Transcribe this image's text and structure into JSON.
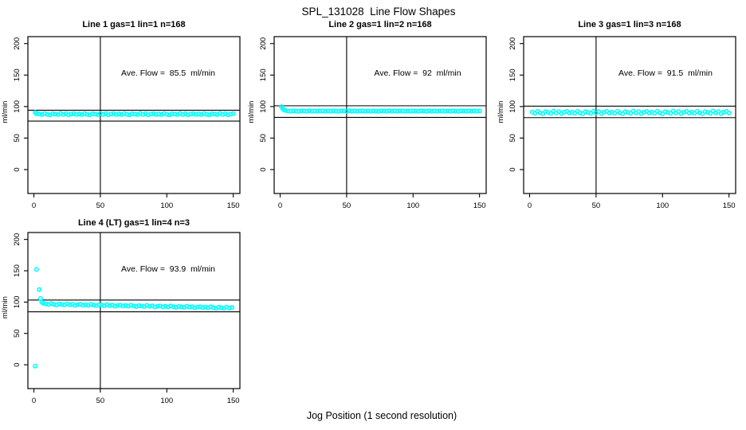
{
  "figure": {
    "main_title": "SPL_131028  Line Flow Shapes",
    "x_axis_label": "Jog Position (1 second resolution)",
    "y_axis_label": "ml/min",
    "accent_color": "#00FFFF",
    "axis_color": "#000000",
    "background_color": "#FFFFFF"
  },
  "chart_data": [
    {
      "type": "scatter",
      "title": "Line 1 gas=1 lin=1 n=168",
      "n": 168,
      "avg_flow": 85.5,
      "avg_label": "Ave. Flow =  85.5  ml/min",
      "ylabel": "ml/min",
      "xticks": [
        0,
        50,
        100,
        150
      ],
      "yticks": [
        0,
        50,
        100,
        150,
        200
      ],
      "xlim": [
        -4.5,
        155
      ],
      "ylim": [
        -38,
        211
      ],
      "vline_x": 50,
      "ref_upper": 94.1,
      "ref_lower": 77.0,
      "head_points": [
        [
          1,
          90.5
        ],
        [
          2,
          88.6
        ]
      ],
      "band": {
        "x_from": 4,
        "x_to": 150,
        "x_step": 2,
        "y": [
          88.3,
          87.3,
          88.9,
          87.7,
          86.8,
          88.5,
          88.0,
          87.2,
          89.0,
          87.5,
          88.6,
          86.9,
          88.1,
          88.7,
          87.4,
          88.3,
          87.3,
          88.9,
          87.7,
          86.8,
          88.5,
          88.0,
          87.2,
          89.0,
          87.5,
          88.6,
          86.9,
          88.1,
          88.7,
          87.4,
          88.3,
          87.3,
          88.9,
          87.7,
          86.8,
          88.5,
          88.0,
          87.2,
          89.0,
          87.5,
          88.6,
          86.9,
          88.1,
          88.7,
          87.4,
          88.3,
          87.3,
          88.9,
          87.7,
          86.8,
          88.5,
          88.0,
          87.2,
          89.0,
          87.5,
          88.6,
          86.9,
          88.1,
          88.7,
          87.4,
          88.3,
          87.3,
          88.9,
          87.7,
          86.8,
          88.5,
          88.0,
          87.2,
          89.0,
          87.5,
          88.6,
          86.9,
          88.1,
          88.7
        ]
      }
    },
    {
      "type": "scatter",
      "title": "Line 2 gas=1 lin=2 n=168",
      "n": 168,
      "avg_flow": 92,
      "avg_label": "Ave. Flow =  92  ml/min",
      "ylabel": "ml/min",
      "xticks": [
        0,
        50,
        100,
        150
      ],
      "yticks": [
        0,
        50,
        100,
        150,
        200
      ],
      "xlim": [
        -4.5,
        155
      ],
      "ylim": [
        -38,
        211
      ],
      "vline_x": 50,
      "ref_upper": 101.2,
      "ref_lower": 82.8,
      "head_points": [
        [
          1,
          99.8
        ],
        [
          2,
          96.5
        ],
        [
          3,
          94.7
        ],
        [
          4,
          93.7
        ]
      ],
      "band": {
        "x_from": 6,
        "x_to": 150,
        "x_step": 2,
        "y": [
          93.0,
          92.6,
          93.2,
          92.7,
          92.4,
          93.1,
          92.9,
          92.5,
          93.3,
          92.7,
          93.1,
          92.4,
          92.9,
          93.2,
          92.6,
          93.0,
          92.6,
          93.2,
          92.7,
          92.4,
          93.1,
          92.9,
          92.5,
          93.3,
          92.7,
          93.1,
          92.4,
          92.9,
          93.2,
          92.6,
          93.0,
          92.6,
          93.2,
          92.7,
          92.4,
          93.1,
          92.9,
          92.5,
          93.3,
          92.7,
          93.1,
          92.4,
          92.9,
          93.2,
          92.6,
          93.0,
          92.6,
          93.2,
          92.7,
          92.4,
          93.1,
          92.9,
          92.5,
          93.3,
          92.7,
          93.1,
          92.4,
          92.9,
          93.2,
          92.6,
          93.0,
          92.6,
          93.2,
          92.7,
          92.4,
          93.1,
          92.9,
          92.5,
          93.3,
          92.7,
          93.1,
          92.4,
          92.9
        ]
      }
    },
    {
      "type": "scatter",
      "title": "Line 3 gas=1 lin=3 n=168",
      "n": 168,
      "avg_flow": 91.5,
      "avg_label": "Ave. Flow =  91.5  ml/min",
      "ylabel": "ml/min",
      "xticks": [
        0,
        50,
        100,
        150
      ],
      "yticks": [
        0,
        50,
        100,
        150,
        200
      ],
      "xlim": [
        -4.5,
        155
      ],
      "ylim": [
        -38,
        211
      ],
      "vline_x": 50,
      "ref_upper": 100.7,
      "ref_lower": 82.4,
      "head_points": [],
      "band": {
        "x_from": 2,
        "x_to": 150,
        "x_step": 2,
        "y": [
          91.2,
          89.4,
          92.6,
          90.2,
          88.6,
          91.8,
          90.8,
          89.2,
          92.8,
          90.0,
          92.0,
          88.9,
          91.0,
          92.3,
          89.7,
          91.2,
          89.4,
          92.6,
          90.2,
          88.6,
          91.8,
          90.8,
          89.2,
          92.8,
          90.0,
          92.0,
          88.9,
          91.0,
          92.3,
          89.7,
          91.2,
          89.4,
          92.6,
          90.2,
          88.6,
          91.8,
          90.8,
          89.2,
          92.8,
          90.0,
          92.0,
          88.9,
          91.0,
          92.3,
          89.7,
          91.2,
          89.4,
          92.6,
          90.2,
          88.6,
          91.8,
          90.8,
          89.2,
          92.8,
          90.0,
          92.0,
          88.9,
          91.0,
          92.3,
          89.7,
          91.2,
          89.4,
          92.6,
          90.2,
          88.6,
          91.8,
          90.8,
          89.2,
          92.8,
          90.0,
          92.0,
          88.9,
          91.0,
          92.3,
          89.7
        ]
      }
    },
    {
      "type": "scatter",
      "title": "Line 4 (LT) gas=1 lin=4 n=3",
      "n": 3,
      "avg_flow": 93.9,
      "avg_label": "Ave. Flow =  93.9  ml/min",
      "ylabel": "ml/min",
      "xticks": [
        0,
        50,
        100,
        150
      ],
      "yticks": [
        0,
        50,
        100,
        150,
        200
      ],
      "xlim": [
        -4.5,
        155
      ],
      "ylim": [
        -38,
        211
      ],
      "vline_x": 50,
      "ref_upper": 103.3,
      "ref_lower": 84.5,
      "head_points": [
        [
          1,
          -2
        ],
        [
          2,
          152
        ],
        [
          4,
          120
        ],
        [
          5,
          106
        ],
        [
          6,
          100
        ],
        [
          7,
          98
        ]
      ],
      "band": {
        "x_from": 9,
        "x_to": 149,
        "x_step": 2,
        "y": [
          97.2,
          96.1,
          97.6,
          96.3,
          95.3,
          97.0,
          96.4,
          95.5,
          97.2,
          95.6,
          96.6,
          94.8,
          96.0,
          96.5,
          95.1,
          95.9,
          94.8,
          96.3,
          95.1,
          94.2,
          95.7,
          95.1,
          94.2,
          96.0,
          94.3,
          95.3,
          93.5,
          94.6,
          95.2,
          93.8,
          94.6,
          93.5,
          95.1,
          93.8,
          92.8,
          94.3,
          93.7,
          92.9,
          94.7,
          93.1,
          94.0,
          92.2,
          93.3,
          93.9,
          92.4,
          93.3,
          92.2,
          93.8,
          92.5,
          91.6,
          93.0,
          92.4,
          91.6,
          93.4,
          91.8,
          92.7,
          90.9,
          92.1,
          92.6,
          91.2,
          92.0,
          90.9,
          92.5,
          91.2,
          90.2,
          91.7,
          91.1,
          90.3,
          92.1,
          90.5,
          91.4
        ]
      }
    }
  ]
}
